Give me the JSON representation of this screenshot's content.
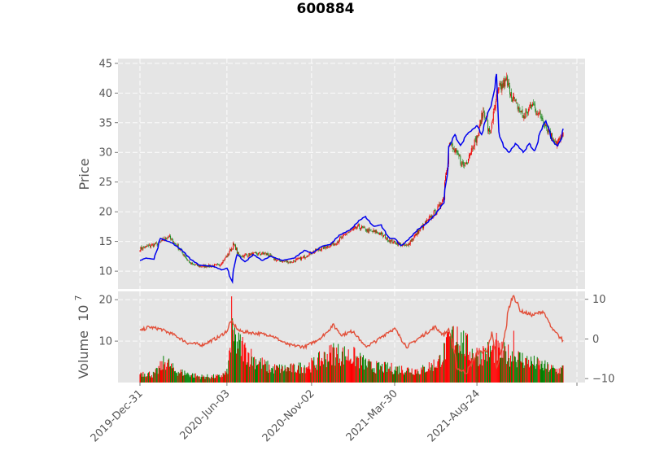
{
  "chart_data": {
    "type": "candlestick",
    "title": "600884",
    "ylabel": "Price",
    "volume_label": "Volume",
    "volume_exponent_base": "10",
    "volume_exponent": "7",
    "x_tick_labels": [
      "2019-Dec-31",
      "2020-Jun-03",
      "2020-Nov-02",
      "2021-Mar-30",
      "2021-Aug-24"
    ],
    "x_range": [
      "2019-Dec-31",
      "2022-Jan-31"
    ],
    "price_ylim": [
      7,
      45.8
    ],
    "price_yticks": [
      10,
      15,
      20,
      25,
      30,
      35,
      40,
      45
    ],
    "volume_ylim": [
      0,
      22
    ],
    "volume_yticks": [
      10,
      20
    ],
    "indicator_ylim": [
      -11,
      12
    ],
    "indicator_yticks": [
      -10,
      0,
      10
    ],
    "grid": true,
    "legend": "none",
    "colors": {
      "up": "#ee0000",
      "down": "#228b22",
      "volume_up": "#ff0000",
      "volume_down": "#008000",
      "overlay_line": "#0000ee",
      "indicator_line": "#e2503a",
      "background": "#e5e5e5"
    },
    "price_close_keypoints": [
      [
        "2019-12-31",
        13.8
      ],
      [
        "2020-01-15",
        14.2
      ],
      [
        "2020-02-01",
        14.6
      ],
      [
        "2020-02-20",
        15.8
      ],
      [
        "2020-03-10",
        13.8
      ],
      [
        "2020-03-30",
        11.2
      ],
      [
        "2020-04-20",
        10.8
      ],
      [
        "2020-05-20",
        11.0
      ],
      [
        "2020-06-03",
        12.5
      ],
      [
        "2020-06-15",
        14.5
      ],
      [
        "2020-06-25",
        12.5
      ],
      [
        "2020-07-15",
        12.8
      ],
      [
        "2020-08-10",
        13.0
      ],
      [
        "2020-09-01",
        11.8
      ],
      [
        "2020-09-25",
        11.5
      ],
      [
        "2020-10-15",
        12.2
      ],
      [
        "2020-11-02",
        13.2
      ],
      [
        "2020-11-25",
        14.0
      ],
      [
        "2020-12-15",
        14.8
      ],
      [
        "2021-01-05",
        16.5
      ],
      [
        "2021-01-25",
        17.5
      ],
      [
        "2021-02-10",
        16.8
      ],
      [
        "2021-03-01",
        16.5
      ],
      [
        "2021-03-20",
        15.2
      ],
      [
        "2021-03-30",
        14.8
      ],
      [
        "2021-04-20",
        14.2
      ],
      [
        "2021-05-05",
        16.0
      ],
      [
        "2021-05-25",
        18.2
      ],
      [
        "2021-06-15",
        20.5
      ],
      [
        "2021-06-25",
        22.5
      ],
      [
        "2021-07-05",
        31.5
      ],
      [
        "2021-07-20",
        29.5
      ],
      [
        "2021-08-01",
        27.5
      ],
      [
        "2021-08-15",
        31.0
      ],
      [
        "2021-08-24",
        32.5
      ],
      [
        "2021-09-05",
        37.5
      ],
      [
        "2021-09-15",
        33.0
      ],
      [
        "2021-10-01",
        40.5
      ],
      [
        "2021-10-15",
        42.0
      ],
      [
        "2021-10-30",
        38.5
      ],
      [
        "2021-11-15",
        36.0
      ],
      [
        "2021-12-01",
        38.0
      ],
      [
        "2021-12-20",
        35.5
      ],
      [
        "2022-01-05",
        32.5
      ],
      [
        "2022-01-15",
        31.5
      ],
      [
        "2022-01-25",
        33.2
      ]
    ],
    "overlay_line_keypoints": [
      [
        "2019-12-31",
        11.8
      ],
      [
        "2020-01-10",
        12.2
      ],
      [
        "2020-01-25",
        12.0
      ],
      [
        "2020-02-05",
        15.5
      ],
      [
        "2020-02-25",
        14.8
      ],
      [
        "2020-03-15",
        13.5
      ],
      [
        "2020-03-30",
        12.0
      ],
      [
        "2020-04-15",
        11.0
      ],
      [
        "2020-05-10",
        10.8
      ],
      [
        "2020-05-25",
        10.2
      ],
      [
        "2020-06-03",
        10.5
      ],
      [
        "2020-06-12",
        8.2
      ],
      [
        "2020-06-20",
        13.0
      ],
      [
        "2020-07-05",
        11.5
      ],
      [
        "2020-07-20",
        12.8
      ],
      [
        "2020-08-05",
        11.8
      ],
      [
        "2020-08-20",
        12.5
      ],
      [
        "2020-09-10",
        11.8
      ],
      [
        "2020-10-01",
        12.2
      ],
      [
        "2020-10-20",
        13.5
      ],
      [
        "2020-11-02",
        13.0
      ],
      [
        "2020-11-20",
        14.2
      ],
      [
        "2020-12-05",
        14.5
      ],
      [
        "2020-12-20",
        16.0
      ],
      [
        "2021-01-10",
        17.0
      ],
      [
        "2021-01-25",
        18.5
      ],
      [
        "2021-02-05",
        19.2
      ],
      [
        "2021-02-20",
        17.5
      ],
      [
        "2021-03-05",
        17.8
      ],
      [
        "2021-03-20",
        15.5
      ],
      [
        "2021-03-30",
        15.5
      ],
      [
        "2021-04-10",
        14.2
      ],
      [
        "2021-04-25",
        15.5
      ],
      [
        "2021-05-10",
        17.0
      ],
      [
        "2021-05-25",
        18.0
      ],
      [
        "2021-06-10",
        19.5
      ],
      [
        "2021-06-25",
        21.5
      ],
      [
        "2021-07-01",
        26.0
      ],
      [
        "2021-07-05",
        31.0
      ],
      [
        "2021-07-15",
        33.0
      ],
      [
        "2021-07-25",
        31.0
      ],
      [
        "2021-08-05",
        33.0
      ],
      [
        "2021-08-24",
        34.5
      ],
      [
        "2021-09-01",
        33.0
      ],
      [
        "2021-09-10",
        36.0
      ],
      [
        "2021-09-20",
        38.5
      ],
      [
        "2021-09-28",
        43.2
      ],
      [
        "2021-10-01",
        33.5
      ],
      [
        "2021-10-10",
        31.0
      ],
      [
        "2021-10-20",
        30.0
      ],
      [
        "2021-11-01",
        31.5
      ],
      [
        "2021-11-15",
        30.0
      ],
      [
        "2021-11-25",
        31.5
      ],
      [
        "2021-12-05",
        30.0
      ],
      [
        "2021-12-15",
        33.5
      ],
      [
        "2021-12-25",
        35.5
      ],
      [
        "2022-01-05",
        32.0
      ],
      [
        "2022-01-15",
        31.0
      ],
      [
        "2022-01-22",
        32.5
      ],
      [
        "2022-01-25",
        34.0
      ]
    ],
    "indicator_keypoints": [
      [
        "2019-12-31",
        2.0
      ],
      [
        "2020-01-15",
        3.0
      ],
      [
        "2020-02-05",
        2.5
      ],
      [
        "2020-03-01",
        1.0
      ],
      [
        "2020-03-25",
        -1.0
      ],
      [
        "2020-04-20",
        -1.5
      ],
      [
        "2020-05-20",
        0.5
      ],
      [
        "2020-06-03",
        2.0
      ],
      [
        "2020-06-10",
        4.5
      ],
      [
        "2020-06-25",
        2.0
      ],
      [
        "2020-07-20",
        1.5
      ],
      [
        "2020-08-20",
        1.0
      ],
      [
        "2020-09-20",
        -1.5
      ],
      [
        "2020-10-20",
        -2.0
      ],
      [
        "2020-11-02",
        -1.0
      ],
      [
        "2020-11-20",
        0.5
      ],
      [
        "2020-12-10",
        3.5
      ],
      [
        "2020-12-25",
        1.0
      ],
      [
        "2021-01-15",
        2.0
      ],
      [
        "2021-02-05",
        -2.0
      ],
      [
        "2021-02-25",
        -0.5
      ],
      [
        "2021-03-20",
        2.0
      ],
      [
        "2021-03-30",
        2.5
      ],
      [
        "2021-04-20",
        -2.0
      ],
      [
        "2021-05-15",
        0.5
      ],
      [
        "2021-06-10",
        3.0
      ],
      [
        "2021-06-25",
        1.0
      ],
      [
        "2021-07-05",
        2.5
      ],
      [
        "2021-07-20",
        -7.5
      ],
      [
        "2021-08-05",
        -8.5
      ],
      [
        "2021-08-24",
        -3.5
      ],
      [
        "2021-09-10",
        -3.0
      ],
      [
        "2021-09-20",
        1.5
      ],
      [
        "2021-09-28",
        -7.5
      ],
      [
        "2021-10-10",
        -1.0
      ],
      [
        "2021-10-20",
        8.0
      ],
      [
        "2021-10-28",
        11.0
      ],
      [
        "2021-11-10",
        7.0
      ],
      [
        "2021-12-01",
        6.0
      ],
      [
        "2021-12-20",
        7.0
      ],
      [
        "2022-01-05",
        2.5
      ],
      [
        "2022-01-25",
        -0.5
      ]
    ],
    "volume_keypoints": [
      [
        "2019-12-31",
        2.5
      ],
      [
        "2020-01-25",
        2.0
      ],
      [
        "2020-02-15",
        5.5
      ],
      [
        "2020-03-01",
        3.0
      ],
      [
        "2020-04-15",
        1.5
      ],
      [
        "2020-05-20",
        1.5
      ],
      [
        "2020-06-03",
        2.5
      ],
      [
        "2020-06-10",
        9.0
      ],
      [
        "2020-06-20",
        10.0
      ],
      [
        "2020-07-20",
        6.0
      ],
      [
        "2020-08-20",
        3.5
      ],
      [
        "2020-10-01",
        3.5
      ],
      [
        "2020-11-02",
        4.5
      ],
      [
        "2020-12-10",
        7.5
      ],
      [
        "2021-01-15",
        6.5
      ],
      [
        "2021-02-15",
        4.0
      ],
      [
        "2021-03-30",
        3.5
      ],
      [
        "2021-05-15",
        3.0
      ],
      [
        "2021-06-15",
        5.0
      ],
      [
        "2021-07-05",
        10.0
      ],
      [
        "2021-07-20",
        12.0
      ],
      [
        "2021-08-10",
        8.0
      ],
      [
        "2021-08-24",
        7.0
      ],
      [
        "2021-09-20",
        8.0
      ],
      [
        "2021-10-20",
        7.0
      ],
      [
        "2021-12-01",
        5.0
      ],
      [
        "2022-01-15",
        3.0
      ],
      [
        "2022-01-25",
        3.5
      ]
    ],
    "volume_peaks": [
      [
        "2020-06-11",
        20.8
      ],
      [
        "2020-06-12",
        15.5
      ],
      [
        "2020-06-17",
        13.5
      ],
      [
        "2020-07-01",
        11.0
      ],
      [
        "2020-12-10",
        9.5
      ],
      [
        "2021-07-12",
        13.5
      ],
      [
        "2021-07-20",
        13.5
      ],
      [
        "2021-09-28",
        12.0
      ],
      [
        "2021-10-28",
        12.5
      ]
    ]
  }
}
